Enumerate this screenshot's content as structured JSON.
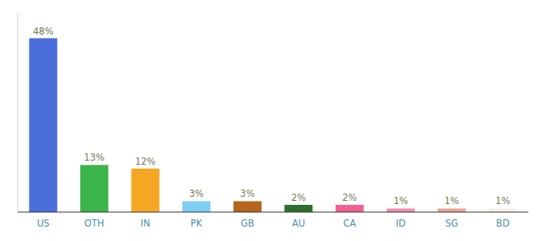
{
  "chart_data": {
    "type": "bar",
    "categories": [
      "US",
      "OTH",
      "IN",
      "PK",
      "GB",
      "AU",
      "CA",
      "ID",
      "SG",
      "BD"
    ],
    "values": [
      48,
      13,
      12,
      3,
      3,
      2,
      2,
      1,
      1,
      1
    ],
    "value_labels": [
      "48%",
      "13%",
      "12%",
      "3%",
      "3%",
      "2%",
      "2%",
      "1%",
      "1%",
      "1%"
    ],
    "colors": [
      "#4a6fdc",
      "#3cb54a",
      "#f5a623",
      "#7ecef4",
      "#b5651d",
      "#2d6e2d",
      "#f06292",
      "#f48fb1",
      "#e8a898",
      "#f5f0e8"
    ],
    "ylim": [
      0,
      55
    ],
    "grid": false,
    "data_labels": true,
    "tick_labels": "x"
  }
}
